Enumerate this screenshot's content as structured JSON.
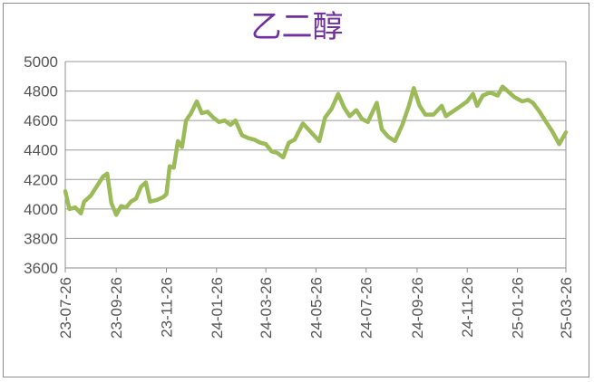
{
  "chart_data": {
    "type": "line",
    "title": "乙二醇",
    "xlabel": "",
    "ylabel": "",
    "ylim": [
      3600,
      5000
    ],
    "yticks": [
      3600,
      3800,
      4000,
      4200,
      4400,
      4600,
      4800,
      5000
    ],
    "ytick_labels": [
      "3600",
      "3800",
      "4000",
      "4200",
      "4400",
      "4600",
      "4800",
      "5000"
    ],
    "xlim": [
      "2023-07-26",
      "2025-03-26"
    ],
    "xtick_labels": [
      "23-07-26",
      "23-09-26",
      "23-11-26",
      "24-01-26",
      "24-03-26",
      "24-05-26",
      "24-07-26",
      "24-09-26",
      "24-11-26",
      "25-01-26",
      "25-03-26"
    ],
    "xtick_dates": [
      "2023-07-26",
      "2023-09-26",
      "2023-11-26",
      "2024-01-26",
      "2024-03-26",
      "2024-05-26",
      "2024-07-26",
      "2024-09-26",
      "2024-11-26",
      "2025-01-26",
      "2025-03-26"
    ],
    "grid": "horizontal",
    "line_color": "#9bbb59",
    "series": [
      {
        "name": "",
        "points": [
          [
            "2023-07-26",
            4120
          ],
          [
            "2023-07-31",
            4000
          ],
          [
            "2023-08-07",
            4010
          ],
          [
            "2023-08-14",
            3970
          ],
          [
            "2023-08-18",
            4050
          ],
          [
            "2023-08-26",
            4090
          ],
          [
            "2023-09-02",
            4150
          ],
          [
            "2023-09-10",
            4220
          ],
          [
            "2023-09-15",
            4240
          ],
          [
            "2023-09-20",
            4040
          ],
          [
            "2023-09-26",
            3960
          ],
          [
            "2023-10-02",
            4020
          ],
          [
            "2023-10-08",
            4010
          ],
          [
            "2023-10-14",
            4050
          ],
          [
            "2023-10-20",
            4070
          ],
          [
            "2023-10-26",
            4150
          ],
          [
            "2023-11-01",
            4180
          ],
          [
            "2023-11-06",
            4050
          ],
          [
            "2023-11-14",
            4060
          ],
          [
            "2023-11-22",
            4080
          ],
          [
            "2023-11-26",
            4100
          ],
          [
            "2023-11-30",
            4290
          ],
          [
            "2023-12-05",
            4280
          ],
          [
            "2023-12-10",
            4460
          ],
          [
            "2023-12-15",
            4420
          ],
          [
            "2023-12-20",
            4600
          ],
          [
            "2023-12-26",
            4650
          ],
          [
            "2024-01-02",
            4730
          ],
          [
            "2024-01-08",
            4650
          ],
          [
            "2024-01-15",
            4660
          ],
          [
            "2024-01-22",
            4620
          ],
          [
            "2024-01-29",
            4590
          ],
          [
            "2024-02-05",
            4600
          ],
          [
            "2024-02-12",
            4570
          ],
          [
            "2024-02-18",
            4600
          ],
          [
            "2024-02-26",
            4500
          ],
          [
            "2024-03-05",
            4480
          ],
          [
            "2024-03-12",
            4470
          ],
          [
            "2024-03-19",
            4450
          ],
          [
            "2024-03-26",
            4440
          ],
          [
            "2024-04-02",
            4390
          ],
          [
            "2024-04-09",
            4380
          ],
          [
            "2024-04-16",
            4350
          ],
          [
            "2024-04-23",
            4450
          ],
          [
            "2024-04-30",
            4470
          ],
          [
            "2024-05-10",
            4580
          ],
          [
            "2024-05-20",
            4520
          ],
          [
            "2024-05-30",
            4460
          ],
          [
            "2024-06-06",
            4620
          ],
          [
            "2024-06-14",
            4680
          ],
          [
            "2024-06-22",
            4780
          ],
          [
            "2024-06-29",
            4690
          ],
          [
            "2024-07-06",
            4630
          ],
          [
            "2024-07-14",
            4670
          ],
          [
            "2024-07-21",
            4610
          ],
          [
            "2024-07-28",
            4590
          ],
          [
            "2024-08-08",
            4720
          ],
          [
            "2024-08-14",
            4540
          ],
          [
            "2024-08-22",
            4490
          ],
          [
            "2024-08-30",
            4460
          ],
          [
            "2024-09-08",
            4570
          ],
          [
            "2024-09-16",
            4700
          ],
          [
            "2024-09-22",
            4820
          ],
          [
            "2024-09-29",
            4700
          ],
          [
            "2024-10-06",
            4640
          ],
          [
            "2024-10-16",
            4640
          ],
          [
            "2024-10-26",
            4700
          ],
          [
            "2024-10-31",
            4630
          ],
          [
            "2024-11-08",
            4660
          ],
          [
            "2024-11-16",
            4690
          ],
          [
            "2024-11-26",
            4730
          ],
          [
            "2024-12-03",
            4780
          ],
          [
            "2024-12-08",
            4700
          ],
          [
            "2024-12-15",
            4770
          ],
          [
            "2024-12-24",
            4790
          ],
          [
            "2025-01-02",
            4770
          ],
          [
            "2025-01-08",
            4830
          ],
          [
            "2025-01-16",
            4790
          ],
          [
            "2025-01-22",
            4760
          ],
          [
            "2025-02-01",
            4730
          ],
          [
            "2025-02-08",
            4740
          ],
          [
            "2025-02-14",
            4720
          ],
          [
            "2025-02-22",
            4660
          ],
          [
            "2025-03-02",
            4590
          ],
          [
            "2025-03-09",
            4530
          ],
          [
            "2025-03-18",
            4440
          ],
          [
            "2025-03-26",
            4520
          ]
        ]
      }
    ]
  }
}
